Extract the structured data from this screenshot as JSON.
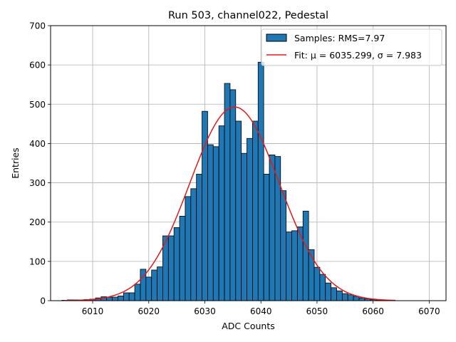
{
  "chart_data": {
    "type": "bar",
    "title": "Run 503, channel022, Pedestal",
    "xlabel": "ADC Counts",
    "ylabel": "Entries",
    "xlim": [
      6002.5,
      6073
    ],
    "ylim": [
      0,
      700
    ],
    "xticks": [
      6010,
      6020,
      6030,
      6040,
      6050,
      6060,
      6070
    ],
    "yticks": [
      0,
      100,
      200,
      300,
      400,
      500,
      600,
      700
    ],
    "grid": true,
    "legend_position": "top-right",
    "bin_width": 1,
    "bins": {
      "x": [
        6005,
        6006,
        6007,
        6008,
        6009,
        6010,
        6011,
        6012,
        6013,
        6014,
        6015,
        6016,
        6017,
        6018,
        6019,
        6020,
        6021,
        6022,
        6023,
        6024,
        6025,
        6026,
        6027,
        6028,
        6029,
        6030,
        6031,
        6032,
        6033,
        6034,
        6035,
        6036,
        6037,
        6038,
        6039,
        6040,
        6041,
        6042,
        6043,
        6044,
        6045,
        6046,
        6047,
        6048,
        6049,
        6050,
        6051,
        6052,
        6053,
        6054,
        6055,
        6056,
        6057,
        6058,
        6059,
        6060,
        6061,
        6062,
        6063
      ],
      "values": [
        1,
        2,
        2,
        2,
        3,
        4,
        7,
        10,
        9,
        9,
        12,
        20,
        20,
        42,
        80,
        60,
        78,
        86,
        165,
        165,
        186,
        215,
        265,
        285,
        322,
        482,
        397,
        392,
        445,
        553,
        537,
        457,
        375,
        413,
        457,
        607,
        322,
        371,
        367,
        280,
        175,
        178,
        188,
        228,
        130,
        85,
        67,
        45,
        33,
        25,
        18,
        15,
        11,
        7,
        5,
        3,
        2,
        1,
        1
      ],
      "color": "#1f77b4",
      "edge_color": "#000000"
    },
    "fit": {
      "mu": 6035.299,
      "sigma": 7.983,
      "amplitude": 493,
      "x_range": [
        6005,
        6064
      ],
      "color": "#e41a1c"
    },
    "legend": [
      {
        "label": "Samples: RMS=7.97",
        "kind": "patch",
        "color": "#1f77b4"
      },
      {
        "label": "Fit: μ = 6035.299, σ = 7.983",
        "kind": "line",
        "color": "#e41a1c"
      }
    ]
  }
}
